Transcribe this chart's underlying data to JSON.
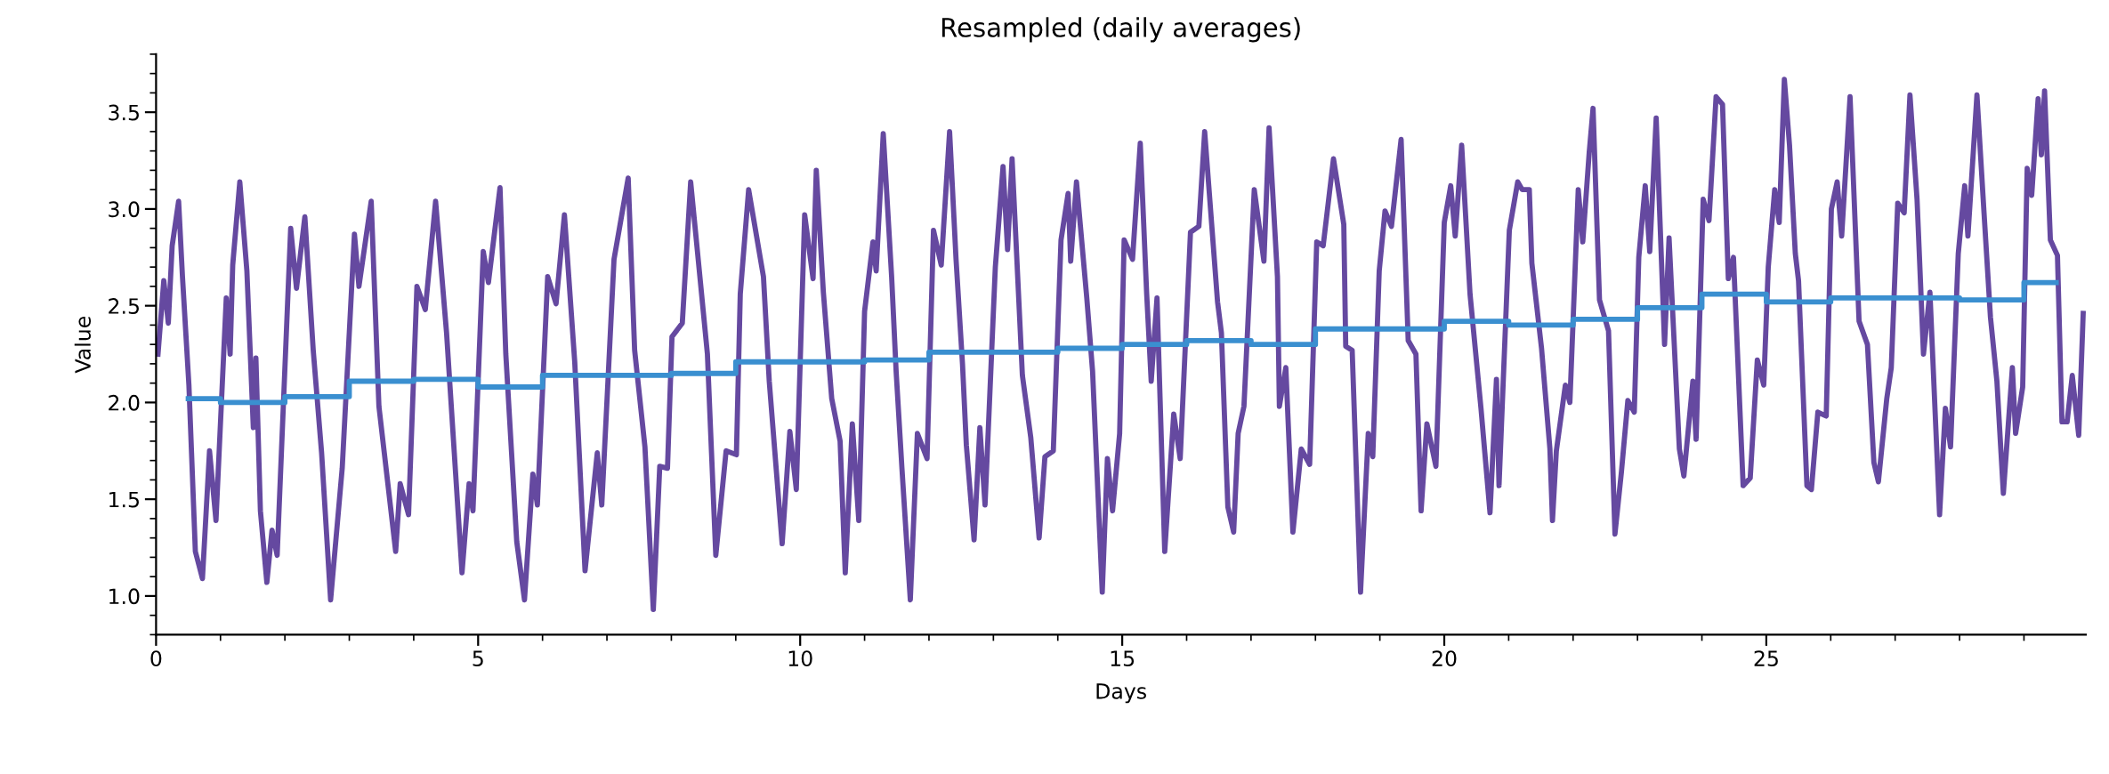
{
  "chart_data": {
    "type": "line",
    "title": "Resampled (daily averages)",
    "xlabel": "Days",
    "ylabel": "Value",
    "xlim": [
      0,
      29.96
    ],
    "ylim": [
      0.8,
      3.8
    ],
    "xticks": [
      0,
      {
        "value": 1,
        "label": null
      },
      {
        "value": 2,
        "label": null
      },
      {
        "value": 3,
        "label": null
      },
      {
        "value": 4,
        "label": null
      },
      5,
      {
        "value": 6,
        "label": null
      },
      {
        "value": 7,
        "label": null
      },
      {
        "value": 8,
        "label": null
      },
      {
        "value": 9,
        "label": null
      },
      10,
      {
        "value": 11,
        "label": null
      },
      {
        "value": 12,
        "label": null
      },
      {
        "value": 13,
        "label": null
      },
      {
        "value": 14,
        "label": null
      },
      15,
      {
        "value": 16,
        "label": null
      },
      {
        "value": 17,
        "label": null
      },
      {
        "value": 18,
        "label": null
      },
      {
        "value": 19,
        "label": null
      },
      20,
      {
        "value": 21,
        "label": null
      },
      {
        "value": 22,
        "label": null
      },
      {
        "value": 23,
        "label": null
      },
      {
        "value": 24,
        "label": null
      },
      25,
      {
        "value": 26,
        "label": null
      },
      {
        "value": 27,
        "label": null
      },
      {
        "value": 28,
        "label": null
      },
      {
        "value": 29,
        "label": null
      }
    ],
    "yticks": [
      {
        "value": 0.8,
        "label": null
      },
      {
        "value": 0.9,
        "label": null
      },
      {
        "value": 1.0,
        "label": "1.0"
      },
      {
        "value": 1.1,
        "label": null
      },
      {
        "value": 1.2,
        "label": null
      },
      {
        "value": 1.3,
        "label": null
      },
      {
        "value": 1.4,
        "label": null
      },
      {
        "value": 1.5,
        "label": "1.5"
      },
      {
        "value": 1.6,
        "label": null
      },
      {
        "value": 1.7,
        "label": null
      },
      {
        "value": 1.8,
        "label": null
      },
      {
        "value": 1.9,
        "label": null
      },
      {
        "value": 2.0,
        "label": "2.0"
      },
      {
        "value": 2.1,
        "label": null
      },
      {
        "value": 2.2,
        "label": null
      },
      {
        "value": 2.3,
        "label": null
      },
      {
        "value": 2.4,
        "label": null
      },
      {
        "value": 2.5,
        "label": "2.5"
      },
      {
        "value": 2.6,
        "label": null
      },
      {
        "value": 2.7,
        "label": null
      },
      {
        "value": 2.8,
        "label": null
      },
      {
        "value": 2.9,
        "label": null
      },
      {
        "value": 3.0,
        "label": "3.0"
      },
      {
        "value": 3.1,
        "label": null
      },
      {
        "value": 3.2,
        "label": null
      },
      {
        "value": 3.3,
        "label": null
      },
      {
        "value": 3.4,
        "label": null
      },
      {
        "value": 3.5,
        "label": "3.5"
      },
      {
        "value": 3.6,
        "label": null
      },
      {
        "value": 3.7,
        "label": null
      },
      {
        "value": 3.8,
        "label": null
      }
    ],
    "grid": false,
    "legend": false,
    "marker": "none",
    "line_style": "solid",
    "series": [
      {
        "type": "line",
        "color": "#6549a0",
        "x": [
          0.03,
          0.12,
          0.19,
          0.25,
          0.35,
          0.41,
          0.51,
          0.61,
          0.72,
          0.83,
          0.93,
          1.09,
          1.15,
          1.19,
          1.3,
          1.41,
          1.51,
          1.55,
          1.62,
          1.72,
          1.8,
          1.88,
          2.09,
          2.18,
          2.31,
          2.44,
          2.57,
          2.71,
          2.89,
          3.08,
          3.15,
          3.34,
          3.46,
          3.72,
          3.79,
          3.92,
          4.05,
          4.18,
          4.34,
          4.51,
          4.75,
          4.86,
          4.92,
          5.08,
          5.16,
          5.34,
          5.43,
          5.6,
          5.72,
          5.85,
          5.92,
          6.08,
          6.21,
          6.34,
          6.5,
          6.66,
          6.85,
          6.92,
          7.11,
          7.33,
          7.43,
          7.59,
          7.72,
          7.82,
          7.94,
          8.01,
          8.17,
          8.3,
          8.56,
          8.69,
          8.85,
          9.01,
          9.07,
          9.2,
          9.43,
          9.52,
          9.72,
          9.84,
          9.94,
          10.07,
          10.2,
          10.25,
          10.36,
          10.49,
          10.62,
          10.7,
          10.81,
          10.91,
          11.0,
          11.13,
          11.18,
          11.29,
          11.42,
          11.49,
          11.58,
          11.71,
          11.82,
          11.97,
          12.07,
          12.19,
          12.32,
          12.42,
          12.52,
          12.58,
          12.7,
          12.79,
          12.87,
          13.03,
          13.15,
          13.22,
          13.29,
          13.45,
          13.58,
          13.71,
          13.8,
          13.93,
          14.05,
          14.16,
          14.2,
          14.29,
          14.45,
          14.54,
          14.69,
          14.77,
          14.85,
          14.96,
          15.03,
          15.16,
          15.28,
          15.38,
          15.45,
          15.54,
          15.66,
          15.8,
          15.9,
          16.06,
          16.19,
          16.28,
          16.48,
          16.54,
          16.64,
          16.73,
          16.8,
          16.89,
          17.05,
          17.2,
          17.28,
          17.41,
          17.44,
          17.54,
          17.65,
          17.78,
          17.91,
          18.02,
          18.12,
          18.28,
          18.44,
          18.47,
          18.57,
          18.7,
          18.82,
          18.89,
          18.99,
          19.08,
          19.18,
          19.33,
          19.44,
          19.56,
          19.64,
          19.73,
          19.87,
          20.0,
          20.1,
          20.17,
          20.27,
          20.4,
          20.57,
          20.71,
          20.81,
          20.85,
          21.01,
          21.14,
          21.21,
          21.32,
          21.36,
          21.51,
          21.64,
          21.68,
          21.74,
          21.88,
          21.95,
          22.08,
          22.15,
          22.25,
          22.31,
          22.41,
          22.55,
          22.65,
          22.75,
          22.85,
          22.95,
          23.02,
          23.12,
          23.19,
          23.29,
          23.42,
          23.49,
          23.65,
          23.72,
          23.86,
          23.91,
          24.02,
          24.11,
          24.22,
          24.32,
          24.41,
          24.49,
          24.64,
          24.75,
          24.86,
          24.96,
          25.03,
          25.13,
          25.2,
          25.28,
          25.36,
          25.45,
          25.5,
          25.63,
          25.7,
          25.8,
          25.93,
          26.01,
          26.1,
          26.17,
          26.3,
          26.44,
          26.57,
          26.67,
          26.74,
          26.87,
          26.94,
          27.04,
          27.14,
          27.23,
          27.34,
          27.44,
          27.54,
          27.69,
          27.78,
          27.86,
          27.98,
          28.08,
          28.13,
          28.27,
          28.38,
          28.48,
          28.58,
          28.68,
          28.82,
          28.87,
          28.98,
          29.05,
          29.12,
          29.22,
          29.27,
          29.32,
          29.41,
          29.52,
          29.59,
          29.67,
          29.75,
          29.85,
          29.92
        ],
        "values": [
          2.25,
          2.63,
          2.41,
          2.81,
          3.04,
          2.65,
          2.09,
          1.23,
          1.09,
          1.75,
          1.39,
          2.54,
          2.25,
          2.71,
          3.14,
          2.68,
          1.87,
          2.23,
          1.44,
          1.07,
          1.34,
          1.21,
          2.9,
          2.59,
          2.96,
          2.27,
          1.74,
          0.98,
          1.66,
          2.87,
          2.6,
          3.04,
          1.98,
          1.23,
          1.58,
          1.42,
          2.6,
          2.48,
          3.04,
          2.36,
          1.12,
          1.58,
          1.44,
          2.78,
          2.62,
          3.11,
          2.25,
          1.28,
          0.98,
          1.63,
          1.47,
          2.65,
          2.51,
          2.97,
          2.21,
          1.13,
          1.74,
          1.47,
          2.74,
          3.16,
          2.27,
          1.77,
          0.93,
          1.67,
          1.66,
          2.34,
          2.41,
          3.14,
          2.25,
          1.21,
          1.75,
          1.73,
          2.56,
          3.1,
          2.65,
          2.11,
          1.27,
          1.85,
          1.55,
          2.97,
          2.64,
          3.2,
          2.57,
          2.02,
          1.8,
          1.12,
          1.89,
          1.39,
          2.47,
          2.83,
          2.68,
          3.39,
          2.65,
          2.16,
          1.66,
          0.98,
          1.84,
          1.71,
          2.89,
          2.71,
          3.4,
          2.74,
          2.2,
          1.78,
          1.29,
          1.87,
          1.47,
          2.7,
          3.22,
          2.79,
          3.26,
          2.14,
          1.82,
          1.3,
          1.72,
          1.75,
          2.84,
          3.08,
          2.73,
          3.14,
          2.54,
          2.16,
          1.02,
          1.71,
          1.44,
          1.84,
          2.84,
          2.74,
          3.34,
          2.56,
          2.11,
          2.54,
          1.23,
          1.94,
          1.71,
          2.88,
          2.91,
          3.4,
          2.52,
          2.36,
          1.46,
          1.33,
          1.84,
          1.98,
          3.1,
          2.73,
          3.42,
          2.65,
          1.98,
          2.18,
          1.33,
          1.76,
          1.68,
          2.83,
          2.81,
          3.26,
          2.92,
          2.29,
          2.27,
          1.02,
          1.84,
          1.72,
          2.68,
          2.99,
          2.91,
          3.36,
          2.32,
          2.25,
          1.44,
          1.89,
          1.67,
          2.93,
          3.12,
          2.86,
          3.33,
          2.56,
          1.97,
          1.43,
          2.12,
          1.57,
          2.89,
          3.14,
          3.1,
          3.1,
          2.72,
          2.28,
          1.76,
          1.39,
          1.75,
          2.09,
          2.0,
          3.1,
          2.83,
          3.29,
          3.52,
          2.53,
          2.37,
          1.32,
          1.64,
          2.01,
          1.95,
          2.75,
          3.12,
          2.78,
          3.47,
          2.3,
          2.85,
          1.76,
          1.62,
          2.11,
          1.81,
          3.05,
          2.94,
          3.58,
          3.54,
          2.64,
          2.75,
          1.57,
          1.61,
          2.22,
          2.09,
          2.7,
          3.1,
          2.93,
          3.67,
          3.33,
          2.77,
          2.63,
          1.57,
          1.55,
          1.95,
          1.93,
          3.0,
          3.14,
          2.86,
          3.58,
          2.42,
          2.3,
          1.69,
          1.59,
          2.02,
          2.18,
          3.03,
          2.98,
          3.59,
          3.05,
          2.25,
          2.57,
          1.42,
          1.97,
          1.77,
          2.77,
          3.12,
          2.86,
          3.59,
          2.98,
          2.44,
          2.11,
          1.53,
          2.18,
          1.84,
          2.08,
          3.21,
          3.07,
          3.57,
          3.28,
          3.61,
          2.84,
          2.76,
          1.9,
          1.9,
          2.14,
          1.83,
          2.46
        ]
      },
      {
        "type": "step",
        "color": "#3a8fd0",
        "x": [
          0.5,
          1.5,
          2.5,
          3.5,
          4.5,
          5.5,
          6.5,
          7.5,
          8.5,
          9.5,
          10.5,
          11.5,
          12.5,
          13.5,
          14.5,
          15.5,
          16.5,
          17.5,
          18.5,
          19.5,
          20.5,
          21.5,
          22.5,
          23.5,
          24.5,
          25.5,
          26.5,
          27.5,
          28.5,
          29.5
        ],
        "values": [
          2.02,
          2.0,
          2.03,
          2.11,
          2.12,
          2.08,
          2.14,
          2.14,
          2.15,
          2.21,
          2.21,
          2.22,
          2.26,
          2.26,
          2.28,
          2.3,
          2.32,
          2.3,
          2.38,
          2.38,
          2.42,
          2.4,
          2.43,
          2.49,
          2.56,
          2.52,
          2.54,
          2.54,
          2.53,
          2.62
        ]
      }
    ]
  }
}
